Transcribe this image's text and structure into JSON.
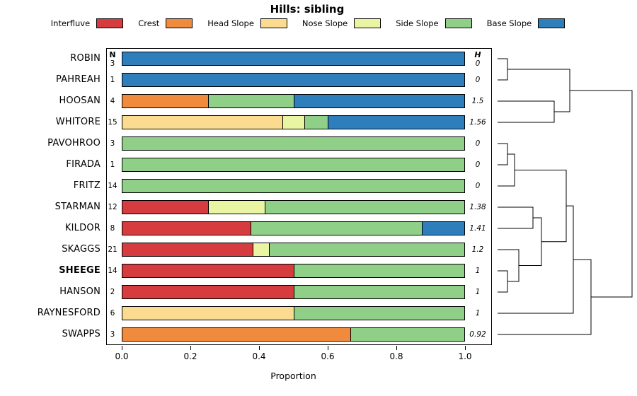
{
  "title": "Hills: sibling",
  "legend": {
    "items": [
      {
        "label": "Interfluve",
        "color": "#d63b40"
      },
      {
        "label": "Crest",
        "color": "#f08a3d"
      },
      {
        "label": "Head Slope",
        "color": "#fadb8f"
      },
      {
        "label": "Nose Slope",
        "color": "#e9f5a3"
      },
      {
        "label": "Side Slope",
        "color": "#90cf88"
      },
      {
        "label": "Base Slope",
        "color": "#2f7ebc"
      }
    ]
  },
  "columns": {
    "n_header": "N",
    "h_header": "H"
  },
  "x_axis": {
    "label": "Proportion",
    "ticks": [
      "0.0",
      "0.2",
      "0.4",
      "0.6",
      "0.8",
      "1.0"
    ],
    "range": [
      0,
      1
    ]
  },
  "chart_data": {
    "type": "bar",
    "orientation": "horizontal",
    "stacked": true,
    "title": "Hills: sibling",
    "xlabel": "Proportion",
    "xlim": [
      0,
      1
    ],
    "grid": false,
    "legend_position": "top",
    "categories": [
      "Interfluve",
      "Crest",
      "Head Slope",
      "Nose Slope",
      "Side Slope",
      "Base Slope"
    ],
    "rows": [
      {
        "label": "ROBIN",
        "n": 3,
        "h": "0",
        "bold": false,
        "segments": [
          {
            "category": "Base Slope",
            "value": 1.0
          }
        ]
      },
      {
        "label": "PAHREAH",
        "n": 1,
        "h": "0",
        "bold": false,
        "segments": [
          {
            "category": "Base Slope",
            "value": 1.0
          }
        ]
      },
      {
        "label": "HOOSAN",
        "n": 4,
        "h": "1.5",
        "bold": false,
        "segments": [
          {
            "category": "Crest",
            "value": 0.25
          },
          {
            "category": "Side Slope",
            "value": 0.25
          },
          {
            "category": "Base Slope",
            "value": 0.5
          }
        ]
      },
      {
        "label": "WHITORE",
        "n": 15,
        "h": "1.56",
        "bold": false,
        "segments": [
          {
            "category": "Head Slope",
            "value": 0.467
          },
          {
            "category": "Nose Slope",
            "value": 0.066
          },
          {
            "category": "Side Slope",
            "value": 0.067
          },
          {
            "category": "Base Slope",
            "value": 0.4
          }
        ]
      },
      {
        "label": "PAVOHROO",
        "n": 3,
        "h": "0",
        "bold": false,
        "segments": [
          {
            "category": "Side Slope",
            "value": 1.0
          }
        ]
      },
      {
        "label": "FIRADA",
        "n": 1,
        "h": "0",
        "bold": false,
        "segments": [
          {
            "category": "Side Slope",
            "value": 1.0
          }
        ]
      },
      {
        "label": "FRITZ",
        "n": 14,
        "h": "0",
        "bold": false,
        "segments": [
          {
            "category": "Side Slope",
            "value": 1.0
          }
        ]
      },
      {
        "label": "STARMAN",
        "n": 12,
        "h": "1.38",
        "bold": false,
        "segments": [
          {
            "category": "Interfluve",
            "value": 0.25
          },
          {
            "category": "Nose Slope",
            "value": 0.167
          },
          {
            "category": "Side Slope",
            "value": 0.583
          }
        ]
      },
      {
        "label": "KILDOR",
        "n": 8,
        "h": "1.41",
        "bold": false,
        "segments": [
          {
            "category": "Interfluve",
            "value": 0.375
          },
          {
            "category": "Side Slope",
            "value": 0.5
          },
          {
            "category": "Base Slope",
            "value": 0.125
          }
        ]
      },
      {
        "label": "SKAGGS",
        "n": 21,
        "h": "1.2",
        "bold": false,
        "segments": [
          {
            "category": "Interfluve",
            "value": 0.381
          },
          {
            "category": "Nose Slope",
            "value": 0.048
          },
          {
            "category": "Side Slope",
            "value": 0.571
          }
        ]
      },
      {
        "label": "SHEEGE",
        "n": 14,
        "h": "1",
        "bold": true,
        "segments": [
          {
            "category": "Interfluve",
            "value": 0.5
          },
          {
            "category": "Side Slope",
            "value": 0.5
          }
        ]
      },
      {
        "label": "HANSON",
        "n": 2,
        "h": "1",
        "bold": false,
        "segments": [
          {
            "category": "Interfluve",
            "value": 0.5
          },
          {
            "category": "Side Slope",
            "value": 0.5
          }
        ]
      },
      {
        "label": "RAYNESFORD",
        "n": 6,
        "h": "1",
        "bold": false,
        "segments": [
          {
            "category": "Head Slope",
            "value": 0.5
          },
          {
            "category": "Side Slope",
            "value": 0.5
          }
        ]
      },
      {
        "label": "SWAPPS",
        "n": 3,
        "h": "0.92",
        "bold": false,
        "segments": [
          {
            "category": "Crest",
            "value": 0.667
          },
          {
            "category": "Side Slope",
            "value": 0.333
          }
        ]
      }
    ]
  },
  "dendrogram": {
    "leaf_x": 8,
    "tree": [
      "m",
      198,
      [
        "m",
        110,
        [
          "m",
          22,
          "ROBIN",
          "PAHREAH"
        ],
        [
          "m",
          88,
          "HOOSAN",
          "WHITORE"
        ]
      ],
      [
        "m",
        140,
        [
          "m",
          115,
          [
            "m",
            105,
            [
              "m",
              32,
              [
                "m",
                22,
                "PAVOHROO",
                "FIRADA"
              ],
              "FRITZ"
            ],
            [
              "m",
              70,
              [
                "m",
                58,
                "STARMAN",
                "KILDOR"
              ],
              [
                "m",
                38,
                "SKAGGS",
                [
                  "m",
                  22,
                  "SHEEGE",
                  "HANSON"
                ]
              ]
            ]
          ],
          "RAYNESFORD"
        ],
        "SWAPPS"
      ]
    ]
  }
}
